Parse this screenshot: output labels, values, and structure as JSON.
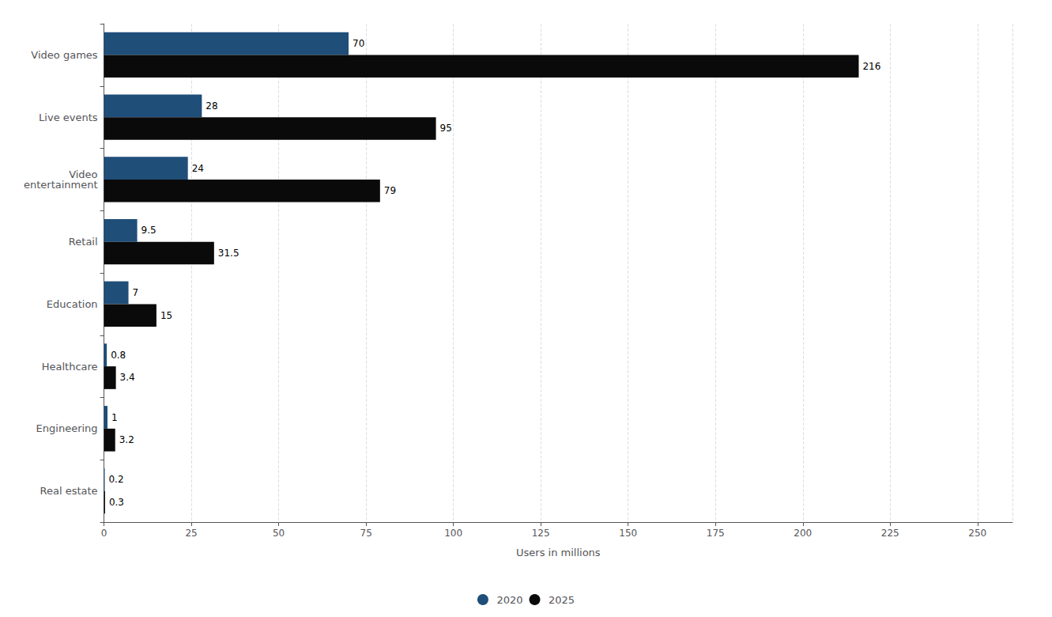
{
  "chart_data": {
    "type": "bar",
    "orientation": "horizontal",
    "categories": [
      "Video games",
      "Live events",
      "Video\nentertainment",
      "Retail",
      "Education",
      "Healthcare",
      "Engineering",
      "Real estate"
    ],
    "series": [
      {
        "name": "2020",
        "color": "#1f4e79",
        "values": [
          70,
          28,
          24,
          9.5,
          7,
          0.8,
          1,
          0.2
        ]
      },
      {
        "name": "2025",
        "color": "#0a0a0a",
        "values": [
          216,
          95,
          79,
          31.5,
          15,
          3.4,
          3.2,
          0.3
        ]
      }
    ],
    "xlabel": "Users in millions",
    "xlim": [
      0,
      260
    ],
    "xticks": [
      0,
      25,
      50,
      75,
      100,
      125,
      150,
      175,
      200,
      225,
      250
    ],
    "grid": true,
    "legend": "bottom",
    "data_labels": true
  }
}
